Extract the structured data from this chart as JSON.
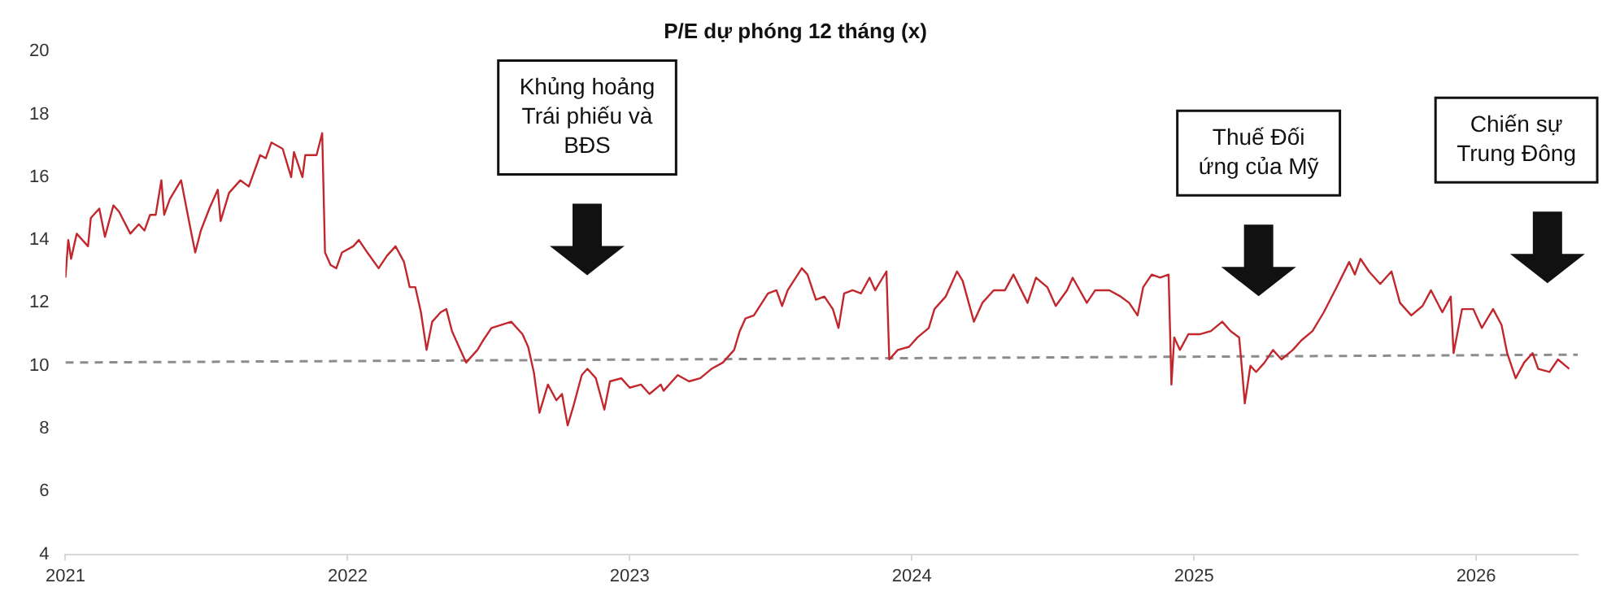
{
  "chart_data": {
    "type": "line",
    "title": "P/E dự phóng 12 tháng (x)",
    "xlim": [
      2021,
      2026.36
    ],
    "xticks": [
      2021,
      2022,
      2023,
      2024,
      2025,
      2026
    ],
    "ylim": [
      4,
      20
    ],
    "yticks": [
      4,
      6,
      8,
      10,
      12,
      14,
      16,
      18,
      20
    ],
    "grid": false,
    "legend": false,
    "series": [
      {
        "color": "#c0282d",
        "x": [
          2021.0,
          2021.01,
          2021.02,
          2021.04,
          2021.08,
          2021.09,
          2021.12,
          2021.14,
          2021.17,
          2021.19,
          2021.23,
          2021.26,
          2021.28,
          2021.3,
          2021.32,
          2021.34,
          2021.35,
          2021.37,
          2021.41,
          2021.44,
          2021.46,
          2021.48,
          2021.51,
          2021.54,
          2021.55,
          2021.58,
          2021.62,
          2021.65,
          2021.69,
          2021.71,
          2021.73,
          2021.77,
          2021.8,
          2021.81,
          2021.84,
          2021.85,
          2021.89,
          2021.91,
          2021.92,
          2021.94,
          2021.96,
          2021.98,
          2022.02,
          2022.04,
          2022.07,
          2022.11,
          2022.14,
          2022.17,
          2022.2,
          2022.22,
          2022.24,
          2022.26,
          2022.28,
          2022.3,
          2022.33,
          2022.35,
          2022.37,
          2022.39,
          2022.42,
          2022.46,
          2022.48,
          2022.51,
          2022.58,
          2022.62,
          2022.64,
          2022.66,
          2022.68,
          2022.71,
          2022.74,
          2022.76,
          2022.78,
          2022.8,
          2022.83,
          2022.85,
          2022.88,
          2022.91,
          2022.93,
          2022.97,
          2023.0,
          2023.04,
          2023.07,
          2023.11,
          2023.12,
          2023.17,
          2023.21,
          2023.25,
          2023.29,
          2023.33,
          2023.37,
          2023.39,
          2023.41,
          2023.44,
          2023.49,
          2023.52,
          2023.54,
          2023.56,
          2023.61,
          2023.63,
          2023.66,
          2023.69,
          2023.72,
          2023.74,
          2023.76,
          2023.79,
          2023.82,
          2023.85,
          2023.87,
          2023.91,
          2023.92,
          2023.95,
          2023.99,
          2024.02,
          2024.06,
          2024.08,
          2024.12,
          2024.16,
          2024.18,
          2024.22,
          2024.25,
          2024.29,
          2024.33,
          2024.36,
          2024.41,
          2024.44,
          2024.48,
          2024.51,
          2024.55,
          2024.57,
          2024.62,
          2024.65,
          2024.7,
          2024.74,
          2024.77,
          2024.8,
          2024.82,
          2024.85,
          2024.88,
          2024.91,
          2024.92,
          2024.93,
          2024.95,
          2024.98,
          2025.02,
          2025.06,
          2025.1,
          2025.13,
          2025.16,
          2025.17,
          2025.18,
          2025.2,
          2025.22,
          2025.25,
          2025.28,
          2025.31,
          2025.35,
          2025.38,
          2025.42,
          2025.46,
          2025.5,
          2025.55,
          2025.57,
          2025.59,
          2025.62,
          2025.66,
          2025.7,
          2025.73,
          2025.77,
          2025.81,
          2025.84,
          2025.88,
          2025.91,
          2025.92,
          2025.95,
          2025.99,
          2026.02,
          2026.06,
          2026.09,
          2026.11,
          2026.14,
          2026.17,
          2026.2,
          2026.22,
          2026.26,
          2026.29,
          2026.33
        ],
        "values": [
          12.8,
          14.0,
          13.4,
          14.2,
          13.8,
          14.7,
          15.0,
          14.1,
          15.1,
          14.9,
          14.2,
          14.5,
          14.3,
          14.8,
          14.8,
          15.9,
          14.8,
          15.3,
          15.9,
          14.5,
          13.6,
          14.3,
          15.0,
          15.6,
          14.6,
          15.5,
          15.9,
          15.7,
          16.7,
          16.6,
          17.1,
          16.9,
          16.0,
          16.8,
          16.0,
          16.7,
          16.7,
          17.4,
          13.6,
          13.2,
          13.1,
          13.6,
          13.8,
          14.0,
          13.6,
          13.1,
          13.5,
          13.8,
          13.3,
          12.5,
          12.5,
          11.7,
          10.5,
          11.4,
          11.7,
          11.8,
          11.1,
          10.7,
          10.1,
          10.5,
          10.8,
          11.2,
          11.4,
          11.0,
          10.6,
          9.8,
          8.5,
          9.4,
          8.9,
          9.1,
          8.1,
          8.7,
          9.7,
          9.9,
          9.6,
          8.6,
          9.5,
          9.6,
          9.3,
          9.4,
          9.1,
          9.4,
          9.2,
          9.7,
          9.5,
          9.6,
          9.9,
          10.1,
          10.5,
          11.1,
          11.5,
          11.6,
          12.3,
          12.4,
          11.9,
          12.4,
          13.1,
          12.9,
          12.1,
          12.2,
          11.8,
          11.2,
          12.3,
          12.4,
          12.3,
          12.8,
          12.4,
          13.0,
          10.2,
          10.5,
          10.6,
          10.9,
          11.2,
          11.8,
          12.2,
          13.0,
          12.7,
          11.4,
          12.0,
          12.4,
          12.4,
          12.9,
          12.0,
          12.8,
          12.5,
          11.9,
          12.4,
          12.8,
          12.0,
          12.4,
          12.4,
          12.2,
          12.0,
          11.6,
          12.5,
          12.9,
          12.8,
          12.9,
          9.4,
          10.9,
          10.5,
          11.0,
          11.0,
          11.1,
          11.4,
          11.1,
          10.9,
          9.9,
          8.8,
          10.0,
          9.8,
          10.1,
          10.5,
          10.2,
          10.5,
          10.8,
          11.1,
          11.7,
          12.4,
          13.3,
          12.9,
          13.4,
          13.0,
          12.6,
          13.0,
          12.0,
          11.6,
          11.9,
          12.4,
          11.7,
          12.2,
          10.4,
          11.8,
          11.8,
          11.2,
          11.8,
          11.3,
          10.4,
          9.6,
          10.1,
          10.4,
          9.9,
          9.8,
          10.2,
          9.9
        ]
      },
      {
        "type": "line",
        "color": "#8c8c8c",
        "line_style": "dashed",
        "x": [
          2021,
          2026.36
        ],
        "values": [
          10.1,
          10.35
        ]
      }
    ],
    "annotations": [
      "Khủng hoảng\nTrái phiếu và\nBĐS",
      "Thuế Đối\nứng của Mỹ",
      "Chiến sự\nTrung Đông"
    ]
  }
}
